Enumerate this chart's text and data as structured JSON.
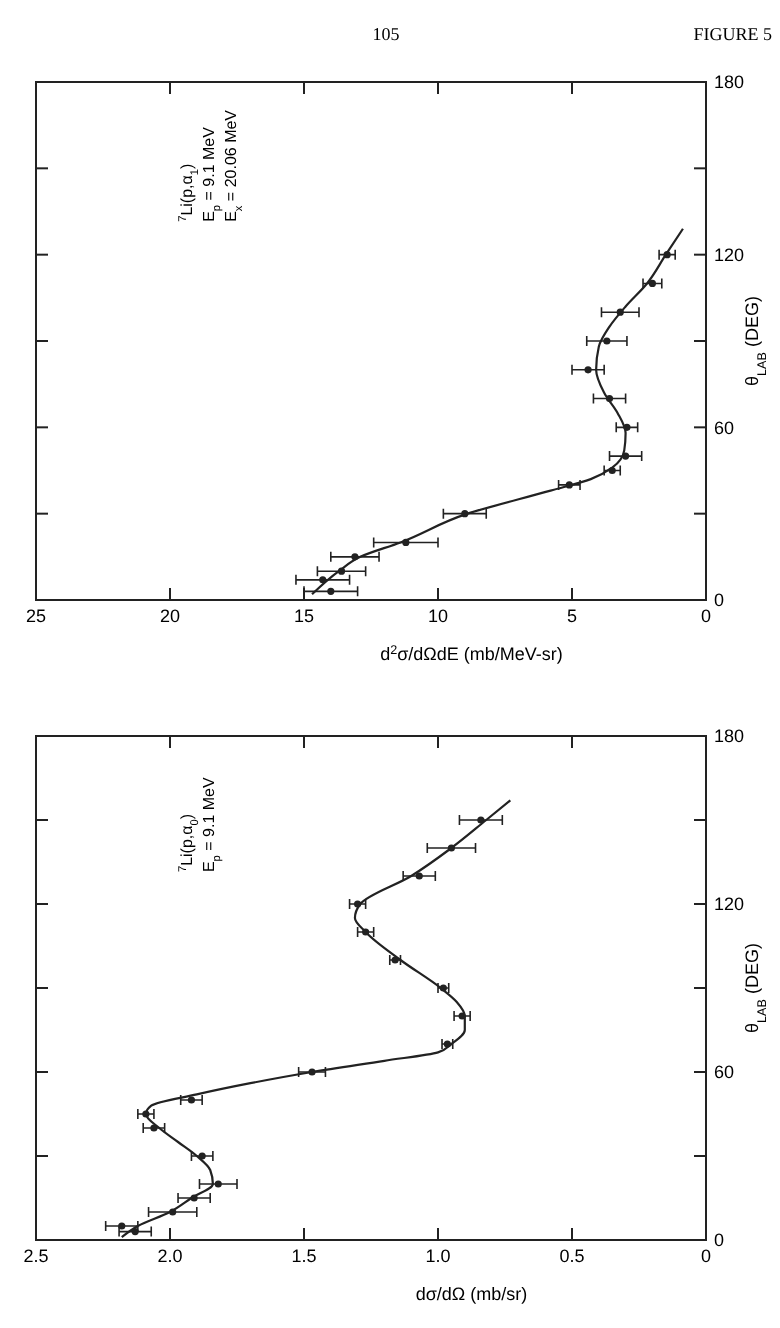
{
  "chart_data": [
    {
      "type": "scatter",
      "title": "FIGURE 5",
      "subtitle": "105",
      "ylabel": "θ$_{LAB}$ (DEG)",
      "xlabel": "d$^{2}$σ/dΩdE  (mb/MeV-sr)",
      "ylim": [
        0,
        180
      ],
      "yticks": [
        0,
        {
          "value": 30,
          "label": null
        },
        60,
        {
          "value": 90,
          "label": null
        },
        120,
        {
          "value": 150,
          "label": null
        },
        180
      ],
      "xlim": [
        25,
        0
      ],
      "xticks": [
        25,
        20,
        15,
        10,
        5,
        0
      ],
      "annotations": [
        "$^{7}$Li(p,α$_{1}$)",
        "E$_{p}$ = 9.1 MeV",
        "E$_{x}$ = 20.06 MeV"
      ],
      "series": [
        {
          "type": "scatter",
          "marker": "circle",
          "color": "#222222",
          "values": [
            3,
            7,
            10,
            15,
            20,
            30,
            40,
            45,
            50,
            60,
            70,
            80,
            90,
            100,
            110,
            120
          ],
          "x": [
            14.0,
            14.3,
            13.6,
            13.1,
            11.2,
            9.0,
            5.1,
            3.5,
            3.0,
            2.95,
            3.6,
            4.4,
            3.7,
            3.2,
            2.0,
            1.45
          ],
          "xerrors": [
            1.0,
            1.0,
            0.9,
            0.9,
            1.2,
            0.8,
            0.4,
            0.3,
            0.6,
            0.4,
            0.6,
            0.6,
            0.75,
            0.7,
            0.35,
            0.3
          ]
        },
        {
          "type": "line",
          "marker": "none",
          "color": "#222222",
          "values": [
            2,
            10,
            15,
            20,
            30,
            38,
            42,
            46,
            52,
            58,
            65,
            72,
            80,
            88,
            95,
            102,
            110,
            120,
            129
          ],
          "x": [
            14.7,
            13.7,
            12.9,
            11.4,
            8.9,
            5.8,
            4.3,
            3.5,
            3.05,
            3.0,
            3.3,
            3.8,
            4.1,
            4.0,
            3.6,
            3.0,
            2.2,
            1.5,
            0.86
          ]
        }
      ]
    },
    {
      "type": "scatter",
      "ylabel": "θ$_{LAB}$ (DEG)",
      "xlabel": "dσ/dΩ  (mb/sr)",
      "ylim": [
        0,
        180
      ],
      "yticks": [
        0,
        {
          "value": 30,
          "label": null
        },
        60,
        {
          "value": 90,
          "label": null
        },
        120,
        {
          "value": 150,
          "label": null
        },
        180
      ],
      "xlim": [
        2.5,
        0
      ],
      "xticks": [
        2.5,
        {
          "value": 2,
          "label": "2.0"
        },
        1.5,
        {
          "value": 1,
          "label": "1.0"
        },
        0.5,
        0
      ],
      "annotations": [
        "$^{7}$Li(p,α$_{0}$)",
        "E$_{p}$ = 9.1 MeV"
      ],
      "series": [
        {
          "type": "scatter",
          "marker": "circle",
          "color": "#222222",
          "values": [
            3,
            5,
            10,
            15,
            20,
            30,
            40,
            45,
            50,
            60,
            70,
            80,
            90,
            100,
            110,
            120,
            130,
            140,
            150
          ],
          "x": [
            2.13,
            2.18,
            1.99,
            1.91,
            1.82,
            1.88,
            2.06,
            2.09,
            1.92,
            1.47,
            0.965,
            0.91,
            0.98,
            1.16,
            1.27,
            1.3,
            1.07,
            0.95,
            0.84
          ],
          "xerrors": [
            0.06,
            0.06,
            0.09,
            0.06,
            0.07,
            0.04,
            0.04,
            0.03,
            0.04,
            0.05,
            0.02,
            0.03,
            0.02,
            0.02,
            0.03,
            0.03,
            0.06,
            0.09,
            0.08
          ]
        },
        {
          "type": "line",
          "marker": "none",
          "color": "#222222",
          "values": [
            1,
            5,
            10,
            15,
            20,
            25,
            30,
            35,
            40,
            45,
            48,
            52,
            56,
            60,
            64,
            67,
            70,
            75,
            80,
            85,
            90,
            100,
            110,
            115,
            120,
            130,
            140,
            150,
            157
          ],
          "x": [
            2.18,
            2.12,
            2.0,
            1.92,
            1.84,
            1.85,
            1.9,
            1.97,
            2.04,
            2.09,
            2.07,
            1.9,
            1.7,
            1.47,
            1.2,
            1.0,
            0.95,
            0.9,
            0.9,
            0.93,
            0.99,
            1.14,
            1.27,
            1.31,
            1.29,
            1.1,
            0.95,
            0.82,
            0.73
          ]
        }
      ]
    }
  ]
}
